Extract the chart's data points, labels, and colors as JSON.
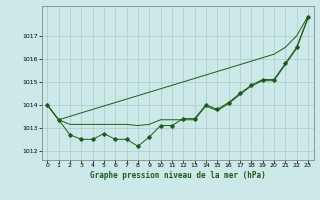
{
  "title": "Graphe pression niveau de la mer (hPa)",
  "xlabel_ticks": [
    0,
    1,
    2,
    3,
    4,
    5,
    6,
    7,
    8,
    9,
    10,
    11,
    12,
    13,
    14,
    15,
    16,
    17,
    18,
    19,
    20,
    21,
    22,
    23
  ],
  "ylim": [
    1011.6,
    1018.3
  ],
  "yticks": [
    1012,
    1013,
    1014,
    1015,
    1016,
    1017
  ],
  "background_color": "#cce8e8",
  "grid_color": "#aacccc",
  "line_color": "#1a5c1a",
  "y_markers": [
    1014.0,
    1013.35,
    1012.7,
    1012.5,
    1012.5,
    1012.75,
    1012.5,
    1012.5,
    1012.2,
    1012.6,
    1013.1,
    1013.1,
    1013.4,
    1013.4,
    1014.0,
    1013.8,
    1014.1,
    1014.5,
    1014.85,
    1015.1,
    1015.1,
    1015.8,
    1016.5,
    1017.8
  ],
  "y_smooth": [
    1014.0,
    1013.35,
    1013.15,
    1013.15,
    1013.15,
    1013.15,
    1013.15,
    1013.15,
    1013.1,
    1013.15,
    1013.35,
    1013.35,
    1013.35,
    1013.35,
    1013.95,
    1013.75,
    1014.05,
    1014.45,
    1014.82,
    1015.05,
    1015.05,
    1015.75,
    1016.45,
    1017.75
  ],
  "y_diagonal": [
    1014.0,
    1013.35,
    1013.5,
    1013.65,
    1013.8,
    1013.95,
    1014.1,
    1014.25,
    1014.4,
    1014.55,
    1014.7,
    1014.85,
    1015.0,
    1015.15,
    1015.3,
    1015.45,
    1015.6,
    1015.75,
    1015.9,
    1016.05,
    1016.2,
    1016.5,
    1017.0,
    1017.85
  ]
}
